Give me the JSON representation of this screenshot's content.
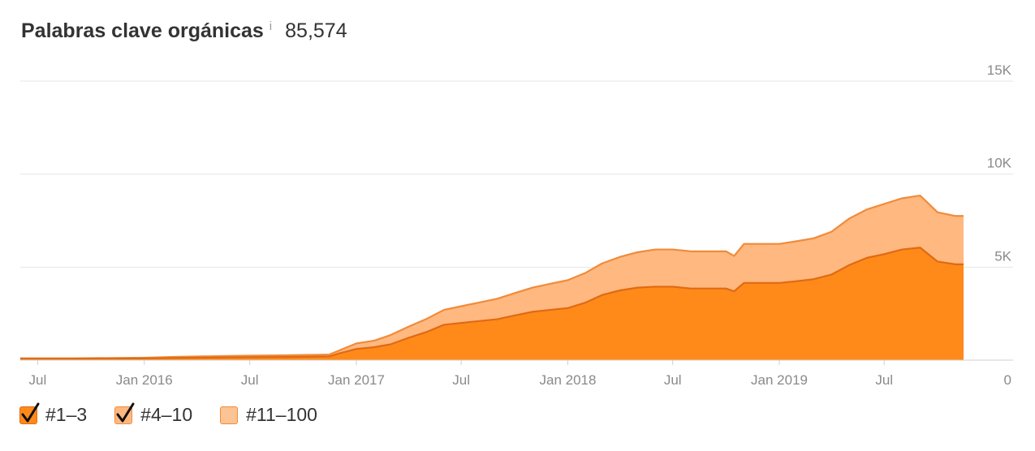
{
  "header": {
    "title": "Palabras clave orgánicas",
    "info_icon": "i",
    "total": "85,574"
  },
  "colors": {
    "top3": "#ff8a1a",
    "top3_line": "#e06a12",
    "top4_10": "#ffb880",
    "top4_10_line": "#f08b3a",
    "top11_100": "#fcc494",
    "grid": "#e6e6e6",
    "axis_text": "#8a8a8a"
  },
  "chart_data": {
    "type": "area",
    "stacked": true,
    "y_axis_position": "right",
    "ylim": [
      0,
      15000
    ],
    "y_ticks": [
      {
        "value": 0,
        "label": "0"
      },
      {
        "value": 5000,
        "label": "5K"
      },
      {
        "value": 10000,
        "label": "10K"
      },
      {
        "value": 15000,
        "label": "15K"
      }
    ],
    "x_ticks": [
      {
        "date": "2015-07-01",
        "label": "Jul"
      },
      {
        "date": "2016-01-01",
        "label": "Jan 2016"
      },
      {
        "date": "2016-07-01",
        "label": "Jul"
      },
      {
        "date": "2017-01-01",
        "label": "Jan 2017"
      },
      {
        "date": "2017-07-01",
        "label": "Jul"
      },
      {
        "date": "2018-01-01",
        "label": "Jan 2018"
      },
      {
        "date": "2018-07-01",
        "label": "Jul"
      },
      {
        "date": "2019-01-01",
        "label": "Jan 2019"
      },
      {
        "date": "2019-07-01",
        "label": "Jul"
      }
    ],
    "xlim": [
      "2015-06-01",
      "2019-11-15"
    ],
    "grid": true,
    "legend_placement": "bottom-left",
    "series": [
      {
        "name": "#1–3",
        "checked": true,
        "points": [
          [
            "2015-06-01",
            80
          ],
          [
            "2015-09-01",
            80
          ],
          [
            "2016-01-01",
            90
          ],
          [
            "2016-03-01",
            120
          ],
          [
            "2016-06-01",
            150
          ],
          [
            "2016-09-01",
            170
          ],
          [
            "2016-11-15",
            200
          ],
          [
            "2016-12-01",
            350
          ],
          [
            "2017-01-01",
            600
          ],
          [
            "2017-02-01",
            700
          ],
          [
            "2017-03-01",
            850
          ],
          [
            "2017-04-01",
            1200
          ],
          [
            "2017-05-01",
            1500
          ],
          [
            "2017-06-01",
            1900
          ],
          [
            "2017-07-01",
            2000
          ],
          [
            "2017-08-01",
            2100
          ],
          [
            "2017-09-01",
            2200
          ],
          [
            "2017-10-01",
            2400
          ],
          [
            "2017-11-01",
            2600
          ],
          [
            "2017-12-01",
            2700
          ],
          [
            "2018-01-01",
            2800
          ],
          [
            "2018-02-01",
            3100
          ],
          [
            "2018-03-01",
            3500
          ],
          [
            "2018-04-01",
            3750
          ],
          [
            "2018-05-01",
            3900
          ],
          [
            "2018-06-01",
            3950
          ],
          [
            "2018-07-01",
            3950
          ],
          [
            "2018-08-01",
            3850
          ],
          [
            "2018-09-01",
            3850
          ],
          [
            "2018-10-01",
            3850
          ],
          [
            "2018-10-15",
            3700
          ],
          [
            "2018-11-01",
            4150
          ],
          [
            "2018-12-01",
            4150
          ],
          [
            "2019-01-01",
            4150
          ],
          [
            "2019-02-01",
            4250
          ],
          [
            "2019-03-01",
            4350
          ],
          [
            "2019-04-01",
            4600
          ],
          [
            "2019-05-01",
            5100
          ],
          [
            "2019-06-01",
            5500
          ],
          [
            "2019-07-01",
            5700
          ],
          [
            "2019-08-01",
            5950
          ],
          [
            "2019-09-01",
            6050
          ],
          [
            "2019-10-01",
            5300
          ],
          [
            "2019-11-01",
            5150
          ],
          [
            "2019-11-15",
            5150
          ]
        ]
      },
      {
        "name": "#4–10",
        "checked": true,
        "points": [
          [
            "2015-06-01",
            20
          ],
          [
            "2015-09-01",
            20
          ],
          [
            "2016-01-01",
            40
          ],
          [
            "2016-03-01",
            60
          ],
          [
            "2016-06-01",
            80
          ],
          [
            "2016-09-01",
            90
          ],
          [
            "2016-11-15",
            100
          ],
          [
            "2016-12-01",
            150
          ],
          [
            "2017-01-01",
            300
          ],
          [
            "2017-02-01",
            350
          ],
          [
            "2017-03-01",
            500
          ],
          [
            "2017-04-01",
            600
          ],
          [
            "2017-05-01",
            700
          ],
          [
            "2017-06-01",
            800
          ],
          [
            "2017-07-01",
            900
          ],
          [
            "2017-08-01",
            1000
          ],
          [
            "2017-09-01",
            1100
          ],
          [
            "2017-10-01",
            1200
          ],
          [
            "2017-11-01",
            1300
          ],
          [
            "2017-12-01",
            1400
          ],
          [
            "2018-01-01",
            1500
          ],
          [
            "2018-02-01",
            1600
          ],
          [
            "2018-03-01",
            1700
          ],
          [
            "2018-04-01",
            1800
          ],
          [
            "2018-05-01",
            1900
          ],
          [
            "2018-06-01",
            2000
          ],
          [
            "2018-07-01",
            2000
          ],
          [
            "2018-08-01",
            2000
          ],
          [
            "2018-09-01",
            2000
          ],
          [
            "2018-10-01",
            2000
          ],
          [
            "2018-10-15",
            1900
          ],
          [
            "2018-11-01",
            2100
          ],
          [
            "2018-12-01",
            2100
          ],
          [
            "2019-01-01",
            2100
          ],
          [
            "2019-02-01",
            2150
          ],
          [
            "2019-03-01",
            2200
          ],
          [
            "2019-04-01",
            2300
          ],
          [
            "2019-05-01",
            2500
          ],
          [
            "2019-06-01",
            2600
          ],
          [
            "2019-07-01",
            2700
          ],
          [
            "2019-08-01",
            2750
          ],
          [
            "2019-09-01",
            2800
          ],
          [
            "2019-10-01",
            2650
          ],
          [
            "2019-11-01",
            2600
          ],
          [
            "2019-11-15",
            2600
          ]
        ]
      },
      {
        "name": "#11–100",
        "checked": false,
        "points": [
          [
            "2015-06-01",
            0
          ],
          [
            "2015-09-01",
            0
          ],
          [
            "2016-01-01",
            0
          ],
          [
            "2016-03-01",
            0
          ],
          [
            "2016-06-01",
            0
          ],
          [
            "2016-09-01",
            0
          ],
          [
            "2016-11-15",
            0
          ],
          [
            "2016-12-01",
            0
          ],
          [
            "2017-01-01",
            0
          ],
          [
            "2017-02-01",
            0
          ],
          [
            "2017-03-01",
            0
          ],
          [
            "2017-04-01",
            0
          ],
          [
            "2017-05-01",
            0
          ],
          [
            "2017-06-01",
            0
          ],
          [
            "2017-07-01",
            0
          ],
          [
            "2017-08-01",
            0
          ],
          [
            "2017-09-01",
            0
          ],
          [
            "2017-10-01",
            0
          ],
          [
            "2017-11-01",
            0
          ],
          [
            "2017-12-01",
            0
          ],
          [
            "2018-01-01",
            0
          ],
          [
            "2018-02-01",
            0
          ],
          [
            "2018-03-01",
            0
          ],
          [
            "2018-04-01",
            0
          ],
          [
            "2018-05-01",
            0
          ],
          [
            "2018-06-01",
            0
          ],
          [
            "2018-07-01",
            0
          ],
          [
            "2018-08-01",
            0
          ],
          [
            "2018-09-01",
            0
          ],
          [
            "2018-10-01",
            0
          ],
          [
            "2018-10-15",
            0
          ],
          [
            "2018-11-01",
            0
          ],
          [
            "2018-12-01",
            0
          ],
          [
            "2019-01-01",
            0
          ],
          [
            "2019-02-01",
            0
          ],
          [
            "2019-03-01",
            0
          ],
          [
            "2019-04-01",
            0
          ],
          [
            "2019-05-01",
            0
          ],
          [
            "2019-06-01",
            0
          ],
          [
            "2019-07-01",
            0
          ],
          [
            "2019-08-01",
            0
          ],
          [
            "2019-09-01",
            0
          ],
          [
            "2019-10-01",
            0
          ],
          [
            "2019-11-01",
            0
          ],
          [
            "2019-11-15",
            0
          ]
        ]
      }
    ]
  }
}
